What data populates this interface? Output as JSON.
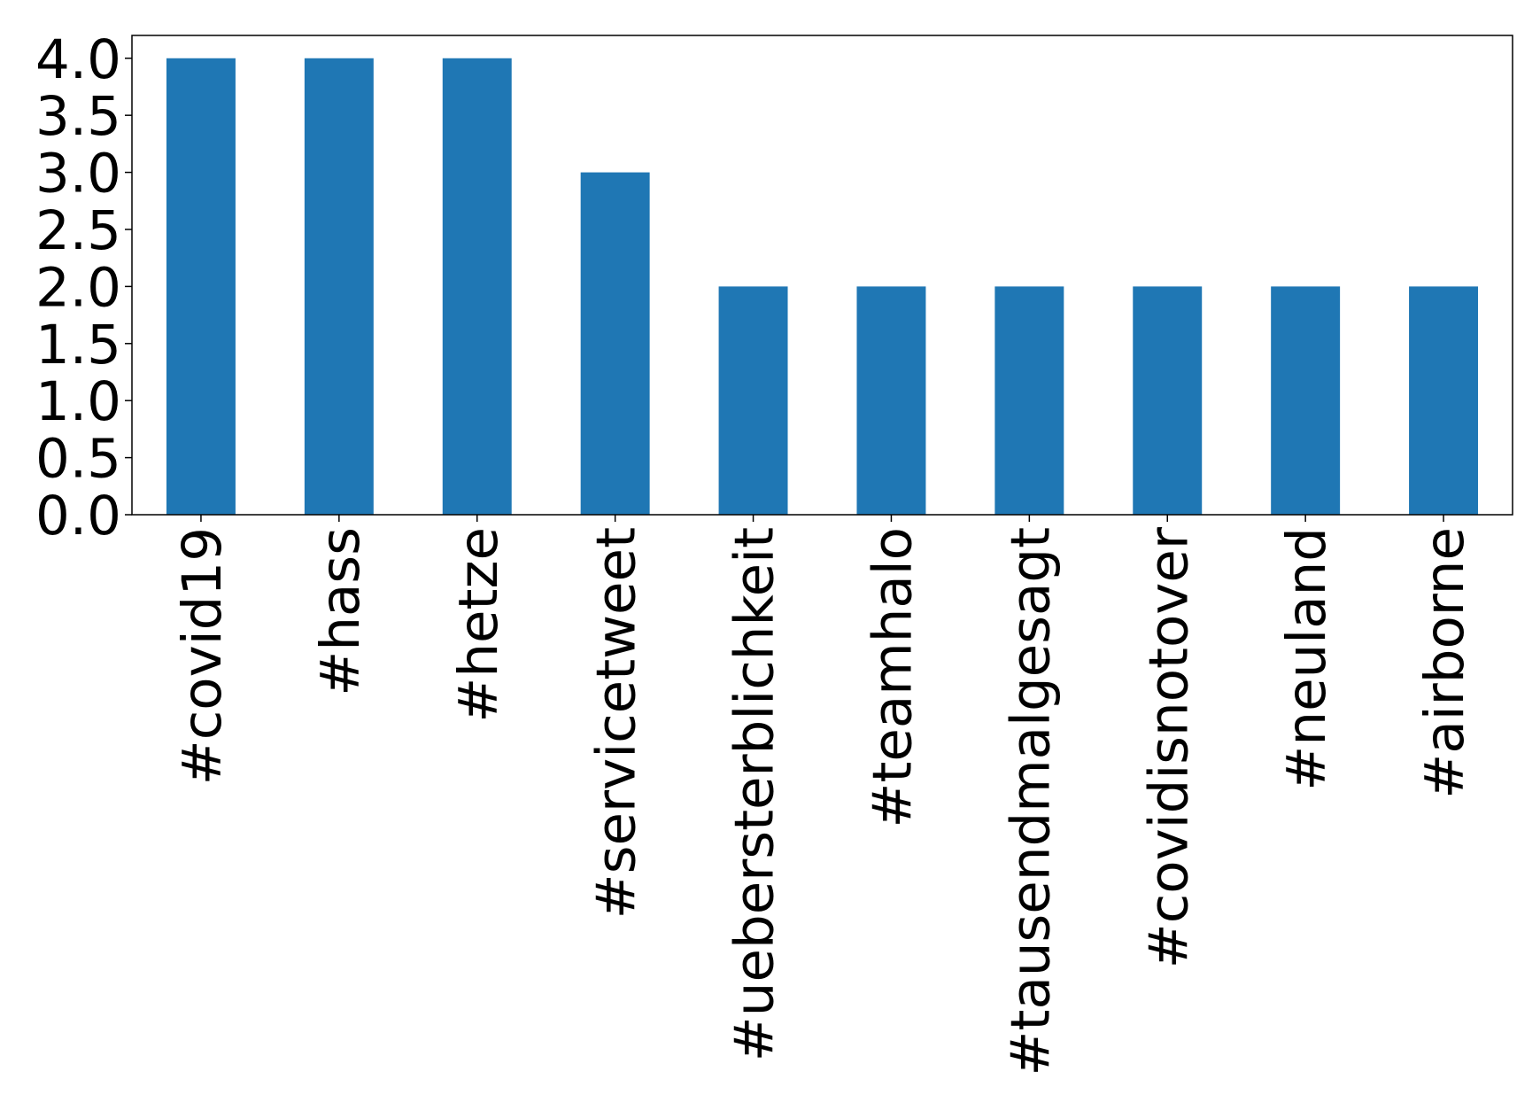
{
  "chart_data": {
    "type": "bar",
    "categories": [
      "#covid19",
      "#hass",
      "#hetze",
      "#servicetweet",
      "#uebersterblichkeit",
      "#teamhalo",
      "#tausendmalgesagt",
      "#covidisnotover",
      "#neuland",
      "#airborne"
    ],
    "values": [
      4,
      4,
      4,
      3,
      2,
      2,
      2,
      2,
      2,
      2
    ],
    "color": "#1f77b4",
    "ylim": [
      0,
      4.2
    ],
    "yticks": [
      {
        "value": 0,
        "label": "0.0"
      },
      0.5,
      {
        "value": 1,
        "label": "1.0"
      },
      1.5,
      {
        "value": 2,
        "label": "2.0"
      },
      2.5,
      {
        "value": 3,
        "label": "3.0"
      },
      3.5,
      {
        "value": 4,
        "label": "4.0"
      }
    ],
    "grid": false
  }
}
